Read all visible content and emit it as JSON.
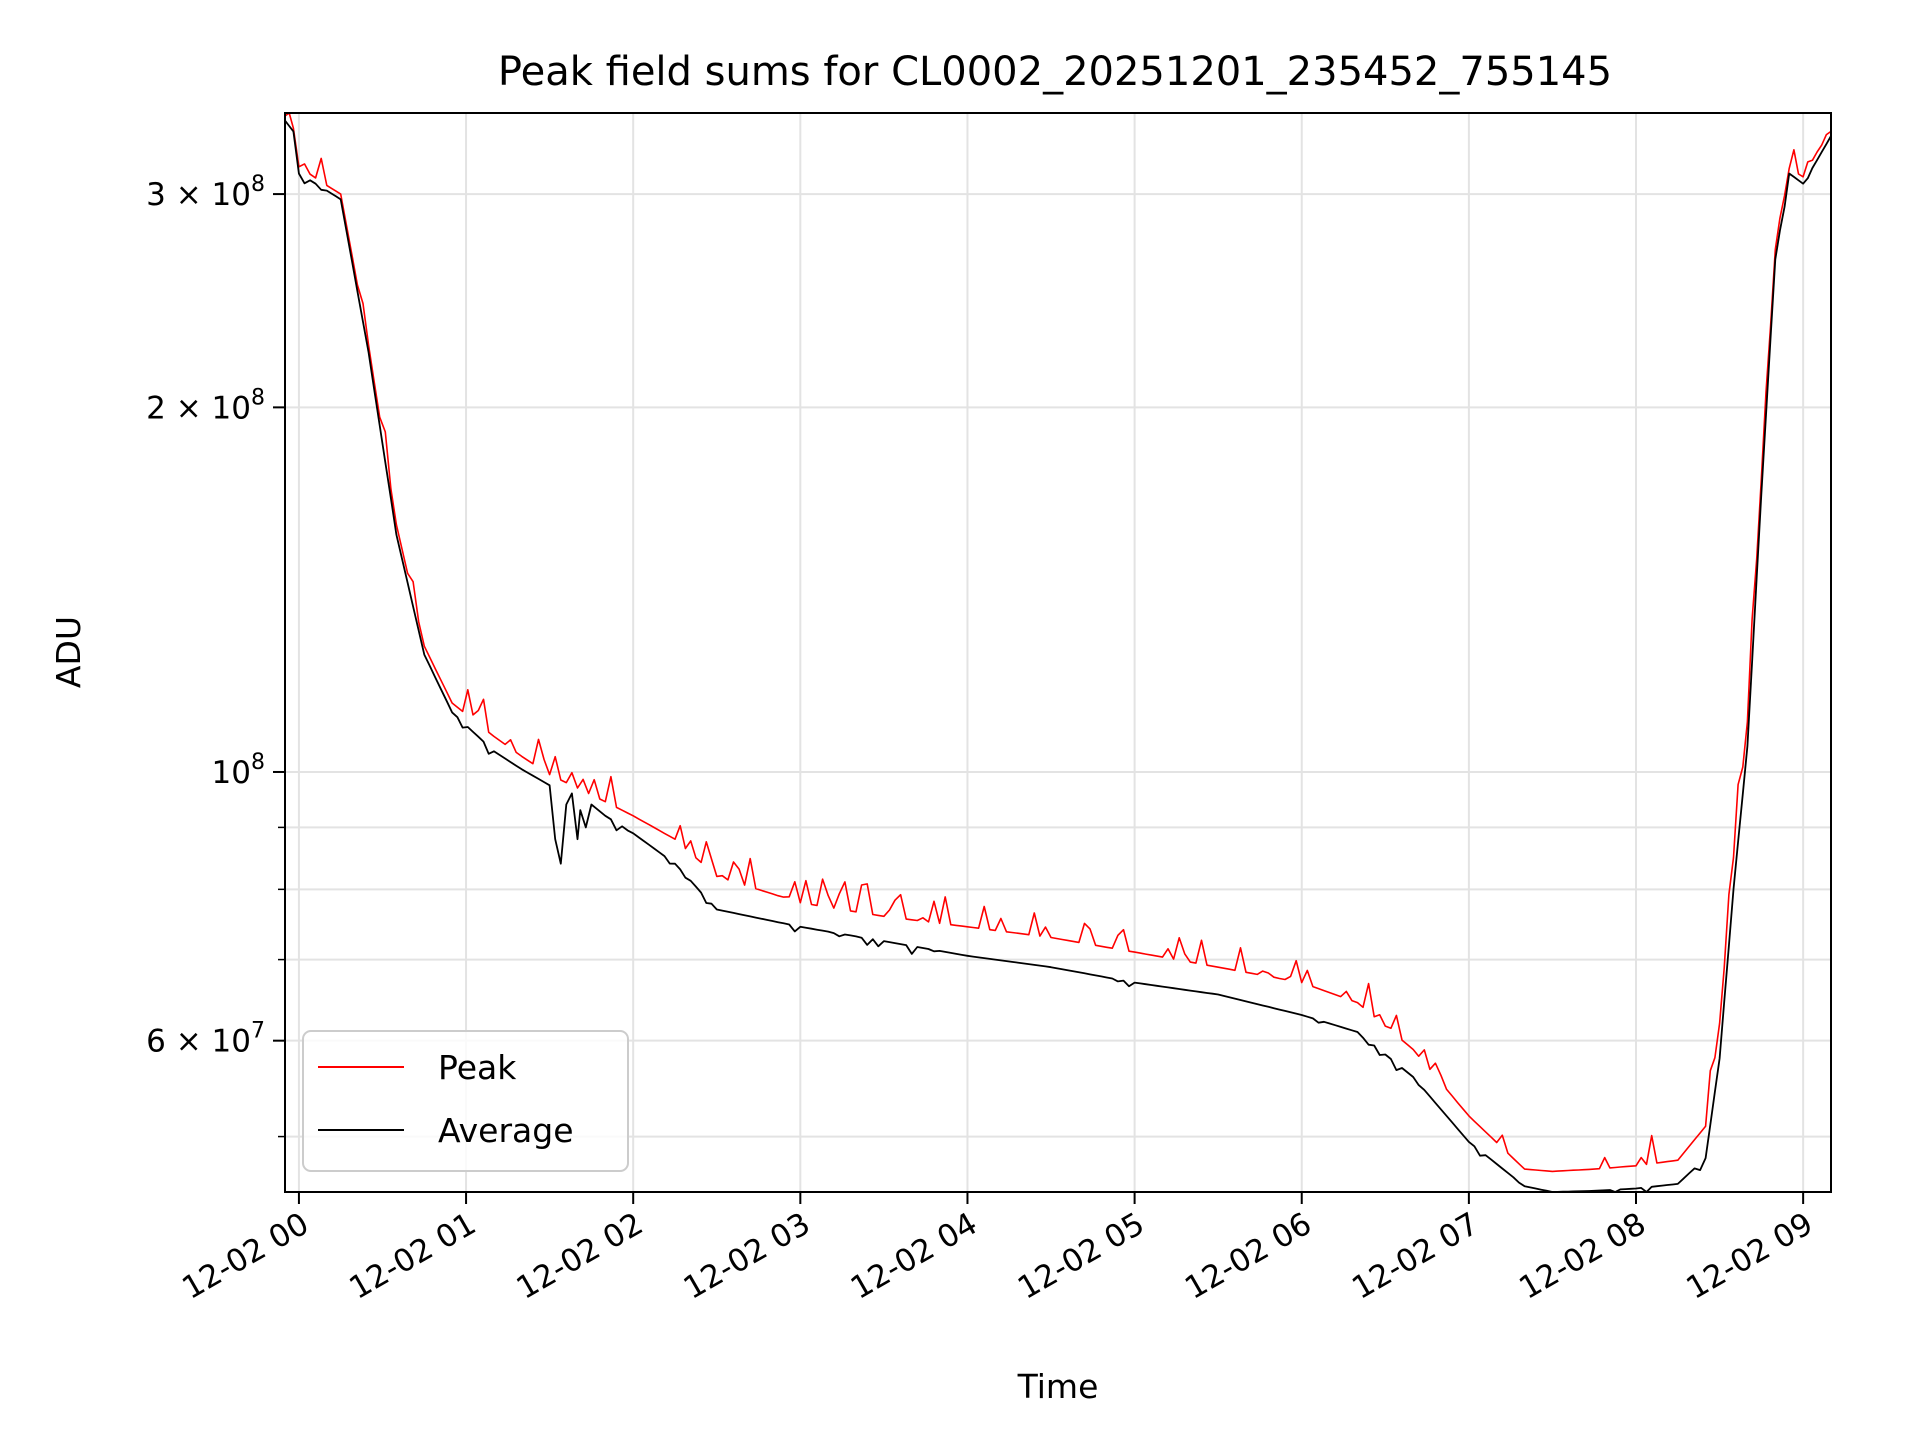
{
  "chart_data": {
    "type": "line",
    "title": "Peak field sums for CL0002_20251201_235452_755145",
    "xlabel": "Time",
    "ylabel": "ADU",
    "y_scale": "log",
    "grid": true,
    "legend_placement": "lower-left",
    "xlim": [
      "2025-12-01 23:55",
      "2025-12-02 09:10"
    ],
    "ylim": [
      45000000,
      350000000
    ],
    "x_ticks": [
      {
        "value": "2025-12-02 00:00",
        "label": "12-02 00"
      },
      {
        "value": "2025-12-02 01:00",
        "label": "12-02 01"
      },
      {
        "value": "2025-12-02 02:00",
        "label": "12-02 02"
      },
      {
        "value": "2025-12-02 03:00",
        "label": "12-02 03"
      },
      {
        "value": "2025-12-02 04:00",
        "label": "12-02 04"
      },
      {
        "value": "2025-12-02 05:00",
        "label": "12-02 05"
      },
      {
        "value": "2025-12-02 06:00",
        "label": "12-02 06"
      },
      {
        "value": "2025-12-02 07:00",
        "label": "12-02 07"
      },
      {
        "value": "2025-12-02 08:00",
        "label": "12-02 08"
      },
      {
        "value": "2025-12-02 09:00",
        "label": "12-02 09"
      }
    ],
    "y_ticks": [
      {
        "value": 60000000,
        "mantissa": "6",
        "exponent": "7"
      },
      {
        "value": 100000000,
        "mantissa": "",
        "exponent": "8"
      },
      {
        "value": 200000000,
        "mantissa": "2",
        "exponent": "8"
      },
      {
        "value": 300000000,
        "mantissa": "3",
        "exponent": "8"
      }
    ],
    "y_minor_ticks": [
      50000000,
      70000000,
      80000000,
      90000000
    ],
    "series": [
      {
        "name": "Peak",
        "color": "#ff0000",
        "x": [
          "2025-12-01 23:55",
          "2025-12-01 23:58",
          "2025-12-02 00:00",
          "2025-12-02 00:10",
          "2025-12-02 00:15",
          "2025-12-02 00:25",
          "2025-12-02 00:35",
          "2025-12-02 00:45",
          "2025-12-02 00:55",
          "2025-12-02 01:10",
          "2025-12-02 01:20",
          "2025-12-02 01:30",
          "2025-12-02 01:40",
          "2025-12-02 01:50",
          "2025-12-02 02:00",
          "2025-12-02 02:15",
          "2025-12-02 02:30",
          "2025-12-02 03:00",
          "2025-12-02 03:30",
          "2025-12-02 04:00",
          "2025-12-02 04:30",
          "2025-12-02 05:00",
          "2025-12-02 05:30",
          "2025-12-02 06:00",
          "2025-12-02 06:20",
          "2025-12-02 06:40",
          "2025-12-02 07:00",
          "2025-12-02 07:20",
          "2025-12-02 07:30",
          "2025-12-02 07:45",
          "2025-12-02 08:00",
          "2025-12-02 08:15",
          "2025-12-02 08:25",
          "2025-12-02 08:30",
          "2025-12-02 08:35",
          "2025-12-02 08:40",
          "2025-12-02 08:45",
          "2025-12-02 08:50",
          "2025-12-02 08:55",
          "2025-12-02 09:00",
          "2025-12-02 09:05",
          "2025-12-02 09:10"
        ],
        "values": [
          348000000,
          340000000,
          316000000,
          305000000,
          300000000,
          225000000,
          160000000,
          127000000,
          114000000,
          107000000,
          103000000,
          99500000,
          97000000,
          94500000,
          92000000,
          88000000,
          82000000,
          78000000,
          76000000,
          74500000,
          73000000,
          71000000,
          69000000,
          67000000,
          64500000,
          59000000,
          52000000,
          47000000,
          46800000,
          47000000,
          47300000,
          47800000,
          51000000,
          62000000,
          85000000,
          110000000,
          175000000,
          270000000,
          315000000,
          310000000,
          325000000,
          338000000
        ]
      },
      {
        "name": "Average",
        "color": "#000000",
        "x": [
          "2025-12-01 23:55",
          "2025-12-01 23:58",
          "2025-12-02 00:00",
          "2025-12-02 00:10",
          "2025-12-02 00:15",
          "2025-12-02 00:25",
          "2025-12-02 00:35",
          "2025-12-02 00:45",
          "2025-12-02 00:55",
          "2025-12-02 01:10",
          "2025-12-02 01:20",
          "2025-12-02 01:30",
          "2025-12-02 01:32",
          "2025-12-02 01:34",
          "2025-12-02 01:36",
          "2025-12-02 01:38",
          "2025-12-02 01:40",
          "2025-12-02 01:41",
          "2025-12-02 01:43",
          "2025-12-02 01:45",
          "2025-12-02 01:50",
          "2025-12-02 02:00",
          "2025-12-02 02:15",
          "2025-12-02 02:30",
          "2025-12-02 03:00",
          "2025-12-02 03:30",
          "2025-12-02 04:00",
          "2025-12-02 04:30",
          "2025-12-02 05:00",
          "2025-12-02 05:30",
          "2025-12-02 06:00",
          "2025-12-02 06:20",
          "2025-12-02 06:40",
          "2025-12-02 07:00",
          "2025-12-02 07:20",
          "2025-12-02 07:30",
          "2025-12-02 07:45",
          "2025-12-02 08:00",
          "2025-12-02 08:15",
          "2025-12-02 08:25",
          "2025-12-02 08:30",
          "2025-12-02 08:35",
          "2025-12-02 08:40",
          "2025-12-02 08:45",
          "2025-12-02 08:50",
          "2025-12-02 08:55",
          "2025-12-02 09:00",
          "2025-12-02 09:05",
          "2025-12-02 09:10"
        ],
        "values": [
          345000000,
          338000000,
          312000000,
          302000000,
          297000000,
          222000000,
          157000000,
          125000000,
          112000000,
          104000000,
          100500000,
          97500000,
          88000000,
          84000000,
          94000000,
          96000000,
          88000000,
          93000000,
          90000000,
          94000000,
          92000000,
          89000000,
          84000000,
          77000000,
          74500000,
          72500000,
          70500000,
          69000000,
          67000000,
          65500000,
          63000000,
          61000000,
          56000000,
          49500000,
          45500000,
          45000000,
          45100000,
          45300000,
          45700000,
          48000000,
          58000000,
          80000000,
          105000000,
          170000000,
          265000000,
          312000000,
          306000000,
          320000000,
          335000000
        ]
      }
    ]
  }
}
